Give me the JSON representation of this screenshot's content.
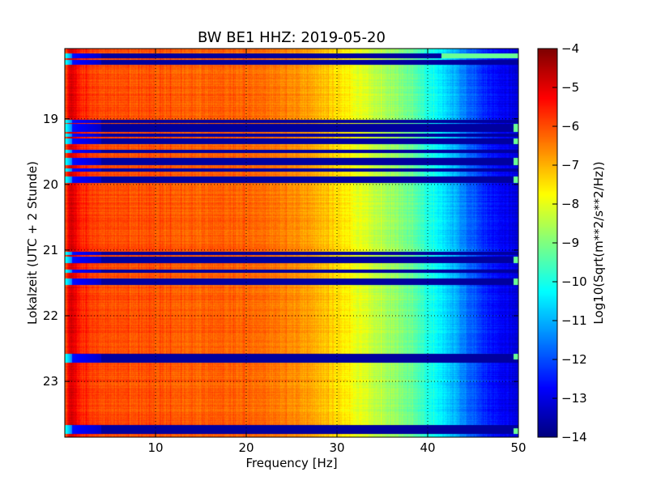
{
  "chart_data": {
    "type": "heatmap",
    "title": "BW BE1 HHZ: 2019-05-20",
    "xlabel": "Frequency [Hz]",
    "ylabel": "Lokalzeit (UTC + 2 Stunde)",
    "colorbar_label": "Log10(Sqrt(m**2/s**2/Hz))",
    "colormap": "jet",
    "xlim": [
      0,
      50
    ],
    "ylim_hours": [
      17.93,
      23.85
    ],
    "y_inverted": true,
    "clim": [
      -14,
      -4
    ],
    "grid": true,
    "x_ticks": [
      10,
      20,
      30,
      40,
      50
    ],
    "x_tick_labels": [
      "10",
      "20",
      "30",
      "40",
      "50"
    ],
    "y_ticks": [
      19,
      20,
      21,
      22,
      23
    ],
    "y_tick_labels": [
      "19",
      "20",
      "21",
      "22",
      "23"
    ],
    "colorbar_ticks": [
      -4,
      -5,
      -6,
      -7,
      -8,
      -9,
      -10,
      -11,
      -12,
      -13,
      -14
    ],
    "colorbar_tick_labels": [
      "−4",
      "−5",
      "−6",
      "−7",
      "−8",
      "−9",
      "−10",
      "−11",
      "−12",
      "−13",
      "−14"
    ],
    "spectrum_profile": {
      "frequency_hz": [
        0,
        0.5,
        1,
        2,
        5,
        10,
        15,
        20,
        25,
        28,
        30,
        32,
        35,
        38,
        40,
        42,
        44,
        46,
        48,
        50
      ],
      "log10_value": [
        -6.3,
        -4.8,
        -5.1,
        -5.7,
        -6.0,
        -6.1,
        -6.2,
        -6.2,
        -6.6,
        -7.0,
        -7.4,
        -7.9,
        -8.5,
        -9.2,
        -9.9,
        -10.6,
        -11.5,
        -12.3,
        -12.8,
        -13.1
      ]
    },
    "gaps": [
      {
        "start_hour": 18.0,
        "end_hour": 18.08,
        "wide_until_hz": 42
      },
      {
        "start_hour": 18.1,
        "end_hour": 18.18,
        "wide_until_hz": 0
      },
      {
        "start_hour": 19.02,
        "end_hour": 19.06,
        "wide_until_hz": 0
      },
      {
        "start_hour": 19.08,
        "end_hour": 19.2,
        "wide_until_hz": 50
      },
      {
        "start_hour": 19.23,
        "end_hour": 19.27,
        "wide_until_hz": 0
      },
      {
        "start_hour": 19.3,
        "end_hour": 19.38,
        "wide_until_hz": 50
      },
      {
        "start_hour": 19.47,
        "end_hour": 19.52,
        "wide_until_hz": 0
      },
      {
        "start_hour": 19.6,
        "end_hour": 19.7,
        "wide_until_hz": 50
      },
      {
        "start_hour": 19.75,
        "end_hour": 19.8,
        "wide_until_hz": 0
      },
      {
        "start_hour": 19.88,
        "end_hour": 19.98,
        "wide_until_hz": 50
      },
      {
        "start_hour": 21.02,
        "end_hour": 21.07,
        "wide_until_hz": 0
      },
      {
        "start_hour": 21.1,
        "end_hour": 21.2,
        "wide_until_hz": 50
      },
      {
        "start_hour": 21.3,
        "end_hour": 21.35,
        "wide_until_hz": 0
      },
      {
        "start_hour": 21.43,
        "end_hour": 21.53,
        "wide_until_hz": 50
      },
      {
        "start_hour": 22.58,
        "end_hour": 22.66,
        "wide_until_hz": 50
      },
      {
        "start_hour": 22.66,
        "end_hour": 22.72,
        "wide_until_hz": 0
      },
      {
        "start_hour": 23.66,
        "end_hour": 23.71,
        "wide_until_hz": 0
      },
      {
        "start_hour": 23.71,
        "end_hour": 23.8,
        "wide_until_hz": 50
      }
    ]
  }
}
